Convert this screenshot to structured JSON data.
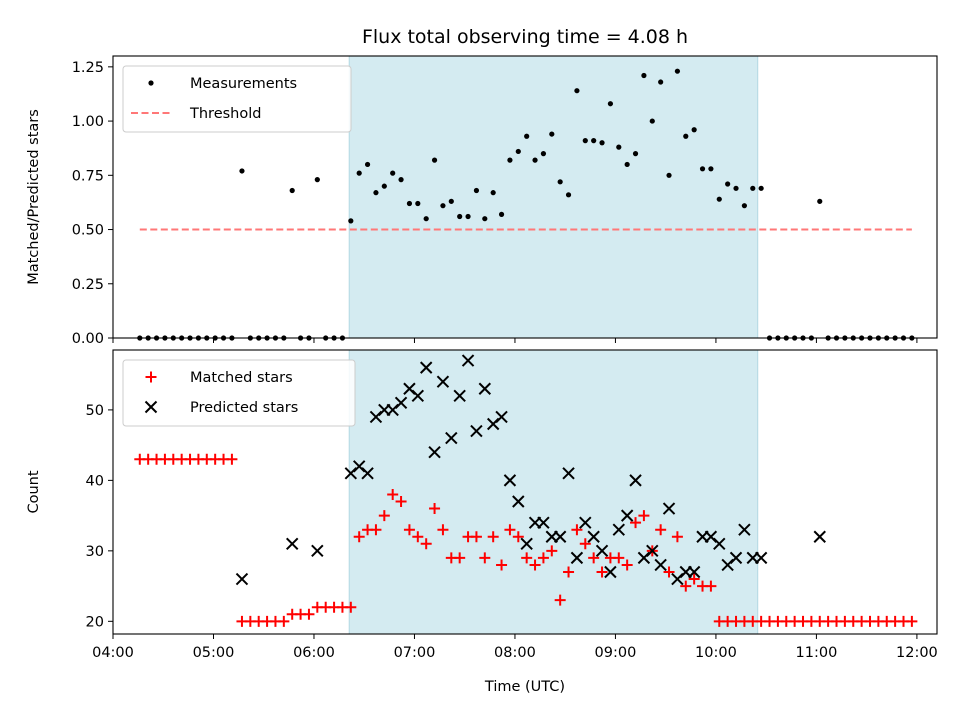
{
  "chart_data": [
    {
      "type": "scatter",
      "title": "Flux total observing time = 4.08 h",
      "xlabel": "",
      "ylabel": "Matched/Predicted stars",
      "xlim": [
        "04:00",
        "12:12"
      ],
      "ylim": [
        0,
        1.3
      ],
      "yticks": [
        "0.00",
        "0.25",
        "0.50",
        "0.75",
        "1.00",
        "1.25"
      ],
      "shaded_interval": [
        "06:21",
        "10:25"
      ],
      "shade_color": "#d4ebf1",
      "legend_position": "top-left",
      "series": [
        {
          "name": "Measurements",
          "marker": "dot",
          "color": "#000000",
          "points": [
            [
              "04:16",
              0
            ],
            [
              "04:21",
              0
            ],
            [
              "04:26",
              0
            ],
            [
              "04:31",
              0
            ],
            [
              "04:36",
              0
            ],
            [
              "04:41",
              0
            ],
            [
              "04:46",
              0
            ],
            [
              "04:51",
              0
            ],
            [
              "04:56",
              0
            ],
            [
              "05:01",
              0
            ],
            [
              "05:06",
              0
            ],
            [
              "05:11",
              0
            ],
            [
              "05:17",
              0.77
            ],
            [
              "05:22",
              0
            ],
            [
              "05:27",
              0
            ],
            [
              "05:32",
              0
            ],
            [
              "05:37",
              0
            ],
            [
              "05:42",
              0
            ],
            [
              "05:47",
              0.68
            ],
            [
              "05:52",
              0
            ],
            [
              "05:57",
              0
            ],
            [
              "06:02",
              0.73
            ],
            [
              "06:07",
              0
            ],
            [
              "06:12",
              0
            ],
            [
              "06:17",
              0
            ],
            [
              "06:22",
              0.54
            ],
            [
              "06:27",
              0.76
            ],
            [
              "06:32",
              0.8
            ],
            [
              "06:37",
              0.67
            ],
            [
              "06:42",
              0.7
            ],
            [
              "06:47",
              0.76
            ],
            [
              "06:52",
              0.73
            ],
            [
              "06:57",
              0.62
            ],
            [
              "07:02",
              0.62
            ],
            [
              "07:07",
              0.55
            ],
            [
              "07:12",
              0.82
            ],
            [
              "07:17",
              0.61
            ],
            [
              "07:22",
              0.63
            ],
            [
              "07:27",
              0.56
            ],
            [
              "07:32",
              0.56
            ],
            [
              "07:37",
              0.68
            ],
            [
              "07:42",
              0.55
            ],
            [
              "07:47",
              0.67
            ],
            [
              "07:52",
              0.57
            ],
            [
              "07:57",
              0.82
            ],
            [
              "08:02",
              0.86
            ],
            [
              "08:07",
              0.93
            ],
            [
              "08:12",
              0.82
            ],
            [
              "08:17",
              0.85
            ],
            [
              "08:22",
              0.94
            ],
            [
              "08:27",
              0.72
            ],
            [
              "08:32",
              0.66
            ],
            [
              "08:37",
              1.14
            ],
            [
              "08:42",
              0.91
            ],
            [
              "08:47",
              0.91
            ],
            [
              "08:52",
              0.9
            ],
            [
              "08:57",
              1.08
            ],
            [
              "09:02",
              0.88
            ],
            [
              "09:07",
              0.8
            ],
            [
              "09:12",
              0.85
            ],
            [
              "09:17",
              1.21
            ],
            [
              "09:22",
              1.0
            ],
            [
              "09:27",
              1.18
            ],
            [
              "09:32",
              0.75
            ],
            [
              "09:37",
              1.23
            ],
            [
              "09:42",
              0.93
            ],
            [
              "09:47",
              0.96
            ],
            [
              "09:52",
              0.78
            ],
            [
              "09:57",
              0.78
            ],
            [
              "10:02",
              0.64
            ],
            [
              "10:07",
              0.71
            ],
            [
              "10:12",
              0.69
            ],
            [
              "10:17",
              0.61
            ],
            [
              "10:22",
              0.69
            ],
            [
              "10:27",
              0.69
            ],
            [
              "10:32",
              0
            ],
            [
              "10:37",
              0
            ],
            [
              "10:42",
              0
            ],
            [
              "10:47",
              0
            ],
            [
              "10:52",
              0
            ],
            [
              "10:57",
              0
            ],
            [
              "11:02",
              0.63
            ],
            [
              "11:07",
              0
            ],
            [
              "11:12",
              0
            ],
            [
              "11:17",
              0
            ],
            [
              "11:22",
              0
            ],
            [
              "11:27",
              0
            ],
            [
              "11:32",
              0
            ],
            [
              "11:37",
              0
            ],
            [
              "11:42",
              0
            ],
            [
              "11:47",
              0
            ],
            [
              "11:52",
              0
            ],
            [
              "11:57",
              0
            ]
          ]
        },
        {
          "name": "Threshold",
          "marker": "dashed-line",
          "color": "#ff7777",
          "points": [
            [
              "04:16",
              0.5
            ],
            [
              "11:57",
              0.5
            ]
          ]
        }
      ]
    },
    {
      "type": "scatter",
      "title": "",
      "xlabel": "Time (UTC)",
      "ylabel": "Count",
      "xlim": [
        "04:00",
        "12:12"
      ],
      "ylim": [
        18.2,
        58.5
      ],
      "yticks": [
        "20",
        "30",
        "40",
        "50"
      ],
      "xticks": [
        "04:00",
        "05:00",
        "06:00",
        "07:00",
        "08:00",
        "09:00",
        "10:00",
        "11:00",
        "12:00"
      ],
      "shaded_interval": [
        "06:21",
        "10:25"
      ],
      "shade_color": "#d4ebf1",
      "legend_position": "top-left",
      "series": [
        {
          "name": "Matched stars",
          "marker": "plus",
          "color": "#ff0000",
          "points": [
            [
              "04:16",
              43
            ],
            [
              "04:21",
              43
            ],
            [
              "04:26",
              43
            ],
            [
              "04:31",
              43
            ],
            [
              "04:36",
              43
            ],
            [
              "04:41",
              43
            ],
            [
              "04:46",
              43
            ],
            [
              "04:51",
              43
            ],
            [
              "04:56",
              43
            ],
            [
              "05:01",
              43
            ],
            [
              "05:06",
              43
            ],
            [
              "05:11",
              43
            ],
            [
              "05:17",
              20
            ],
            [
              "05:22",
              20
            ],
            [
              "05:27",
              20
            ],
            [
              "05:32",
              20
            ],
            [
              "05:37",
              20
            ],
            [
              "05:42",
              20
            ],
            [
              "05:47",
              21
            ],
            [
              "05:52",
              21
            ],
            [
              "05:57",
              21
            ],
            [
              "06:02",
              22
            ],
            [
              "06:07",
              22
            ],
            [
              "06:12",
              22
            ],
            [
              "06:17",
              22
            ],
            [
              "06:22",
              22
            ],
            [
              "06:27",
              32
            ],
            [
              "06:32",
              33
            ],
            [
              "06:37",
              33
            ],
            [
              "06:42",
              35
            ],
            [
              "06:47",
              38
            ],
            [
              "06:52",
              37
            ],
            [
              "06:57",
              33
            ],
            [
              "07:02",
              32
            ],
            [
              "07:07",
              31
            ],
            [
              "07:12",
              36
            ],
            [
              "07:17",
              33
            ],
            [
              "07:22",
              29
            ],
            [
              "07:27",
              29
            ],
            [
              "07:32",
              32
            ],
            [
              "07:37",
              32
            ],
            [
              "07:42",
              29
            ],
            [
              "07:47",
              32
            ],
            [
              "07:52",
              28
            ],
            [
              "07:57",
              33
            ],
            [
              "08:02",
              32
            ],
            [
              "08:07",
              29
            ],
            [
              "08:12",
              28
            ],
            [
              "08:17",
              29
            ],
            [
              "08:22",
              30
            ],
            [
              "08:27",
              23
            ],
            [
              "08:32",
              27
            ],
            [
              "08:37",
              33
            ],
            [
              "08:42",
              31
            ],
            [
              "08:47",
              29
            ],
            [
              "08:52",
              27
            ],
            [
              "08:57",
              29
            ],
            [
              "09:02",
              29
            ],
            [
              "09:07",
              28
            ],
            [
              "09:12",
              34
            ],
            [
              "09:17",
              35
            ],
            [
              "09:22",
              30
            ],
            [
              "09:27",
              33
            ],
            [
              "09:32",
              27
            ],
            [
              "09:37",
              32
            ],
            [
              "09:42",
              25
            ],
            [
              "09:47",
              26
            ],
            [
              "09:52",
              25
            ],
            [
              "09:57",
              25
            ],
            [
              "10:02",
              20
            ],
            [
              "10:07",
              20
            ],
            [
              "10:12",
              20
            ],
            [
              "10:17",
              20
            ],
            [
              "10:22",
              20
            ],
            [
              "10:27",
              20
            ],
            [
              "10:32",
              20
            ],
            [
              "10:37",
              20
            ],
            [
              "10:42",
              20
            ],
            [
              "10:47",
              20
            ],
            [
              "10:52",
              20
            ],
            [
              "10:57",
              20
            ],
            [
              "11:02",
              20
            ],
            [
              "11:07",
              20
            ],
            [
              "11:12",
              20
            ],
            [
              "11:17",
              20
            ],
            [
              "11:22",
              20
            ],
            [
              "11:27",
              20
            ],
            [
              "11:32",
              20
            ],
            [
              "11:37",
              20
            ],
            [
              "11:42",
              20
            ],
            [
              "11:47",
              20
            ],
            [
              "11:52",
              20
            ],
            [
              "11:57",
              20
            ]
          ]
        },
        {
          "name": "Predicted stars",
          "marker": "x",
          "color": "#000000",
          "points": [
            [
              "05:17",
              26
            ],
            [
              "05:47",
              31
            ],
            [
              "06:02",
              30
            ],
            [
              "06:22",
              41
            ],
            [
              "06:27",
              42
            ],
            [
              "06:32",
              41
            ],
            [
              "06:37",
              49
            ],
            [
              "06:42",
              50
            ],
            [
              "06:47",
              50
            ],
            [
              "06:52",
              51
            ],
            [
              "06:57",
              53
            ],
            [
              "07:02",
              52
            ],
            [
              "07:07",
              56
            ],
            [
              "07:12",
              44
            ],
            [
              "07:17",
              54
            ],
            [
              "07:22",
              46
            ],
            [
              "07:27",
              52
            ],
            [
              "07:32",
              57
            ],
            [
              "07:37",
              47
            ],
            [
              "07:42",
              53
            ],
            [
              "07:47",
              48
            ],
            [
              "07:52",
              49
            ],
            [
              "07:57",
              40
            ],
            [
              "08:02",
              37
            ],
            [
              "08:07",
              31
            ],
            [
              "08:12",
              34
            ],
            [
              "08:17",
              34
            ],
            [
              "08:22",
              32
            ],
            [
              "08:27",
              32
            ],
            [
              "08:32",
              41
            ],
            [
              "08:37",
              29
            ],
            [
              "08:42",
              34
            ],
            [
              "08:47",
              32
            ],
            [
              "08:52",
              30
            ],
            [
              "08:57",
              27
            ],
            [
              "09:02",
              33
            ],
            [
              "09:07",
              35
            ],
            [
              "09:12",
              40
            ],
            [
              "09:17",
              29
            ],
            [
              "09:22",
              30
            ],
            [
              "09:27",
              28
            ],
            [
              "09:32",
              36
            ],
            [
              "09:37",
              26
            ],
            [
              "09:42",
              27
            ],
            [
              "09:47",
              27
            ],
            [
              "09:52",
              32
            ],
            [
              "09:57",
              32
            ],
            [
              "10:02",
              31
            ],
            [
              "10:07",
              28
            ],
            [
              "10:12",
              29
            ],
            [
              "10:17",
              33
            ],
            [
              "10:22",
              29
            ],
            [
              "10:27",
              29
            ],
            [
              "11:02",
              32
            ]
          ]
        }
      ]
    }
  ]
}
